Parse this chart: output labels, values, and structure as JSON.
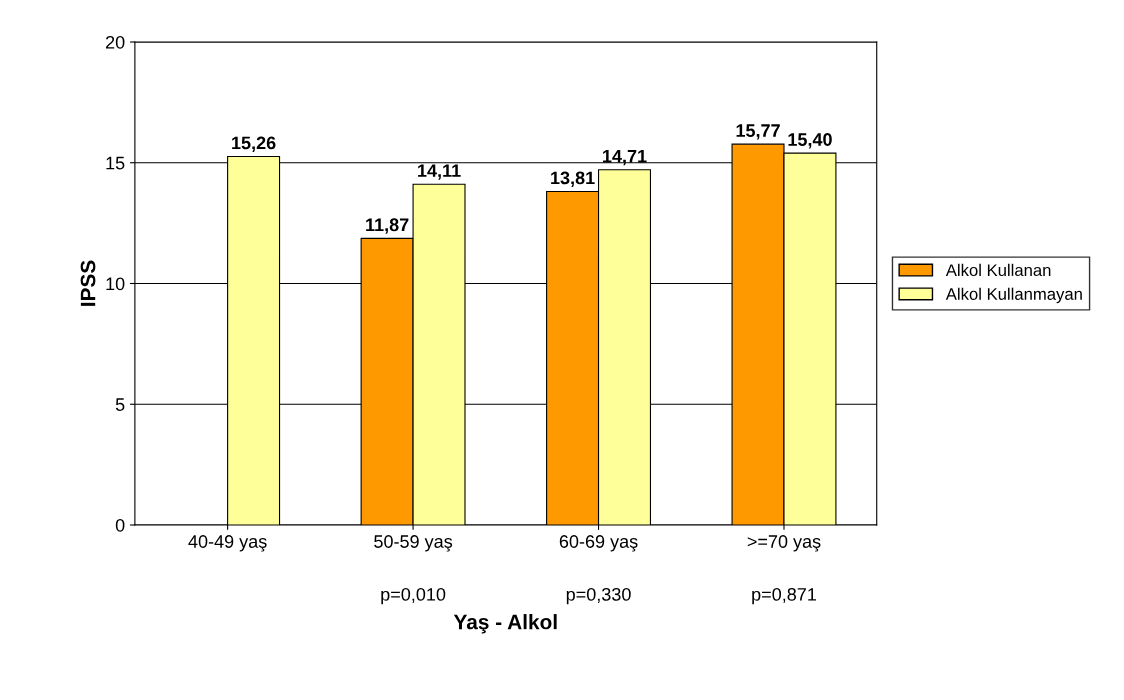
{
  "chart_data": {
    "type": "bar",
    "categories": [
      "40-49 yaş",
      "50-59 yaş",
      "60-69 yaş",
      ">=70 yaş"
    ],
    "series": [
      {
        "name": "Alkol Kullanan",
        "color": "#ff9900",
        "values": [
          null,
          11.87,
          13.81,
          15.77
        ],
        "value_labels": [
          null,
          "11,87",
          "13,81",
          "15,77"
        ]
      },
      {
        "name": "Alkol Kullanmayan",
        "color": "#ffff99",
        "values": [
          15.26,
          14.11,
          14.71,
          15.4
        ],
        "value_labels": [
          "15,26",
          "14,11",
          "14,71",
          "15,40"
        ]
      }
    ],
    "xlabel": "Yaş - Alkol",
    "ylabel": "IPSS",
    "ylim": [
      0,
      20
    ],
    "yticks": [
      0,
      5,
      10,
      15,
      20
    ],
    "grid": "y",
    "legend": "right",
    "annotations": [
      "p=0,010",
      "p=0,330",
      "p=0,871"
    ]
  }
}
